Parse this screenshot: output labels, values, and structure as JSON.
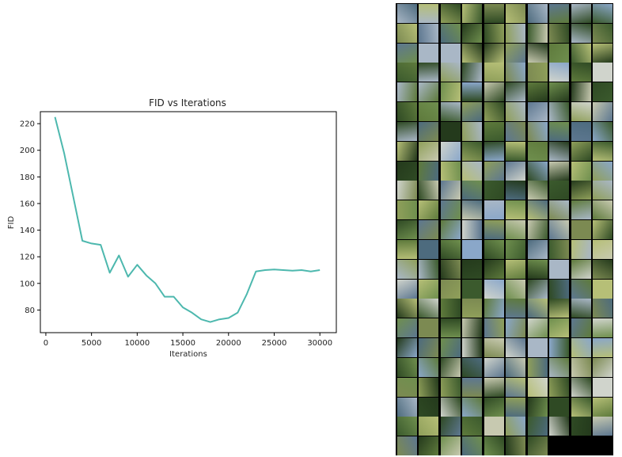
{
  "chart_data": {
    "type": "line",
    "title": "FID vs Iterations",
    "xlabel": "Iterations",
    "ylabel": "FID",
    "xlim": [
      -600,
      31800
    ],
    "ylim": [
      63,
      229
    ],
    "xticks": [
      0,
      5000,
      10000,
      15000,
      20000,
      25000,
      30000
    ],
    "yticks": [
      80,
      100,
      120,
      140,
      160,
      180,
      200,
      220
    ],
    "grid": false,
    "color": "#4db8ae",
    "x": [
      1000,
      2000,
      3000,
      4000,
      5000,
      6000,
      7000,
      8000,
      9000,
      10000,
      11000,
      12000,
      13000,
      14000,
      15000,
      16000,
      17000,
      18000,
      19000,
      20000,
      21000,
      22000,
      23000,
      24000,
      25000,
      26000,
      27000,
      28000,
      29000,
      30000
    ],
    "y": [
      225,
      198,
      165,
      132,
      130,
      129,
      108,
      121,
      105,
      114,
      106,
      100,
      90,
      90,
      82,
      78,
      73,
      71,
      73,
      74,
      78,
      92,
      109,
      110,
      110.5,
      110,
      109.5,
      110,
      109,
      110
    ]
  },
  "sample_grid": {
    "rows": 23,
    "cols": 10,
    "empty_cells": 3,
    "palette": [
      "#5e7a3c",
      "#2f4a24",
      "#8aa7c9",
      "#b6bf77",
      "#6f8f4e",
      "#3b5a2d",
      "#a9b7c6",
      "#4d6b7e",
      "#c7c9b0",
      "#7c8a52",
      "#243a1c",
      "#d0d4cc",
      "#8f9f5a",
      "#5d7790"
    ]
  }
}
